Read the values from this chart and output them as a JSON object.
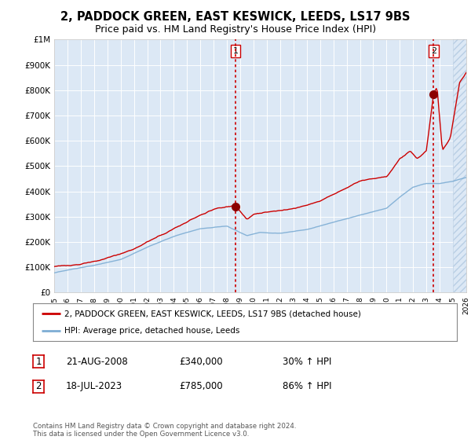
{
  "title": "2, PADDOCK GREEN, EAST KESWICK, LEEDS, LS17 9BS",
  "subtitle": "Price paid vs. HM Land Registry's House Price Index (HPI)",
  "x_start_year": 1995,
  "x_end_year": 2026,
  "ylim": [
    0,
    1000000
  ],
  "yticks": [
    0,
    100000,
    200000,
    300000,
    400000,
    500000,
    600000,
    700000,
    800000,
    900000,
    1000000
  ],
  "ytick_labels": [
    "£0",
    "£100K",
    "£200K",
    "£300K",
    "£400K",
    "£500K",
    "£600K",
    "£700K",
    "£800K",
    "£900K",
    "£1M"
  ],
  "hpi_color": "#7dadd4",
  "property_color": "#cc0000",
  "vline_color": "#cc0000",
  "sale1_year": 2008.644,
  "sale1_price": 340000,
  "sale1_label": "1",
  "sale2_year": 2023.542,
  "sale2_price": 785000,
  "sale2_label": "2",
  "outer_bg": "#ffffff",
  "plot_bg_color": "#dce8f5",
  "legend_entry1": "2, PADDOCK GREEN, EAST KESWICK, LEEDS, LS17 9BS (detached house)",
  "legend_entry2": "HPI: Average price, detached house, Leeds",
  "table_row1": [
    "1",
    "21-AUG-2008",
    "£340,000",
    "30% ↑ HPI"
  ],
  "table_row2": [
    "2",
    "18-JUL-2023",
    "£785,000",
    "86% ↑ HPI"
  ],
  "footnote": "Contains HM Land Registry data © Crown copyright and database right 2024.\nThis data is licensed under the Open Government Licence v3.0.",
  "grid_color": "#ffffff",
  "title_fontsize": 10.5,
  "subtitle_fontsize": 9
}
